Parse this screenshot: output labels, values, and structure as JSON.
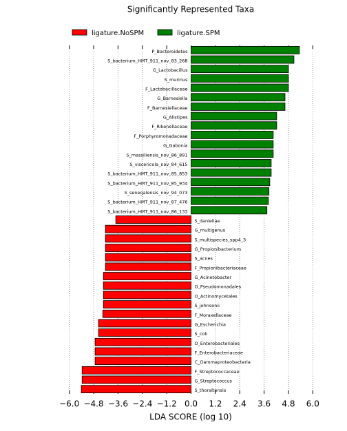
{
  "chart_data": {
    "type": "bar",
    "orientation": "horizontal",
    "title": "Significantly Represented Taxa",
    "x_label": "LDA SCORE (log 10)",
    "categories": [
      "P_Bacteroidetes",
      "S_bacterium_HMT_911_nov_83_268",
      "G_Lactobacillus",
      "S_murinus",
      "F_Lactobacillaceae",
      "G_Barnesiella",
      "F_Barnesiellaceae",
      "G_Alistipes",
      "F_Rikenellaceae",
      "F_Porphyromonadaceae",
      "G_Gabonia",
      "S_massiliensis_nov_86_891",
      "S_viscericola_nov_84_615",
      "S_bacterium_HMT_911_nov_85_853",
      "S_bacterium_HMT_911_nov_85_934",
      "S_senegalensis_nov_94_073",
      "S_bacterium_HMT_911_nov_87_476",
      "S_bacterium_HMT_911_nov_86_133",
      "S_danieliae",
      "G_multigenus",
      "S_multispecies_spp4_3",
      "G_Propionibacterium",
      "S_acnes",
      "F_Propionibacteriaceae",
      "G_Acinetobacter",
      "O_Pseudomonadales",
      "O_Actinomycetales",
      "S_johnsonii",
      "F_Moraxellaceae",
      "G_Escherichia",
      "S_coli",
      "O_Enterobacteriales",
      "F_Enterobacteriaceae",
      "C_Gammaproteobacteria",
      "F_Streptococcaceae",
      "G_Streptococcus",
      "S_thoraltensis"
    ],
    "series": [
      {
        "name": "ligature.NoSPM",
        "color": "#ff0000",
        "values": [
          null,
          null,
          null,
          null,
          null,
          null,
          null,
          null,
          null,
          null,
          null,
          null,
          null,
          null,
          null,
          null,
          null,
          null,
          -3.71,
          -4.22,
          -4.22,
          -4.22,
          -4.22,
          -4.22,
          -4.32,
          -4.32,
          -4.32,
          -4.32,
          -4.35,
          -4.56,
          -4.56,
          -4.73,
          -4.73,
          -4.73,
          -5.37,
          -5.37,
          -5.41
        ]
      },
      {
        "name": "ligature.SPM",
        "color": "#008000",
        "values": [
          5.34,
          5.07,
          4.8,
          4.8,
          4.8,
          4.63,
          4.63,
          4.22,
          4.22,
          4.05,
          4.05,
          4.05,
          3.95,
          3.95,
          3.88,
          3.84,
          3.81,
          3.74,
          null,
          null,
          null,
          null,
          null,
          null,
          null,
          null,
          null,
          null,
          null,
          null,
          null,
          null,
          null,
          null,
          null,
          null,
          null
        ]
      }
    ],
    "xlim": [
      -6.6,
      6.6
    ],
    "xticks": [
      {
        "value": -6,
        "label": "−6.0"
      },
      {
        "value": -4.8,
        "label": "−4.8"
      },
      {
        "value": -3.6,
        "label": "−3.6"
      },
      {
        "value": -2.4,
        "label": "−2.4"
      },
      {
        "value": -1.2,
        "label": "−1.2"
      },
      {
        "value": 0,
        "label": "0.0"
      },
      1.2,
      2.4,
      3.6,
      4.8,
      {
        "value": 6,
        "label": "6.0"
      }
    ],
    "grid": true
  }
}
